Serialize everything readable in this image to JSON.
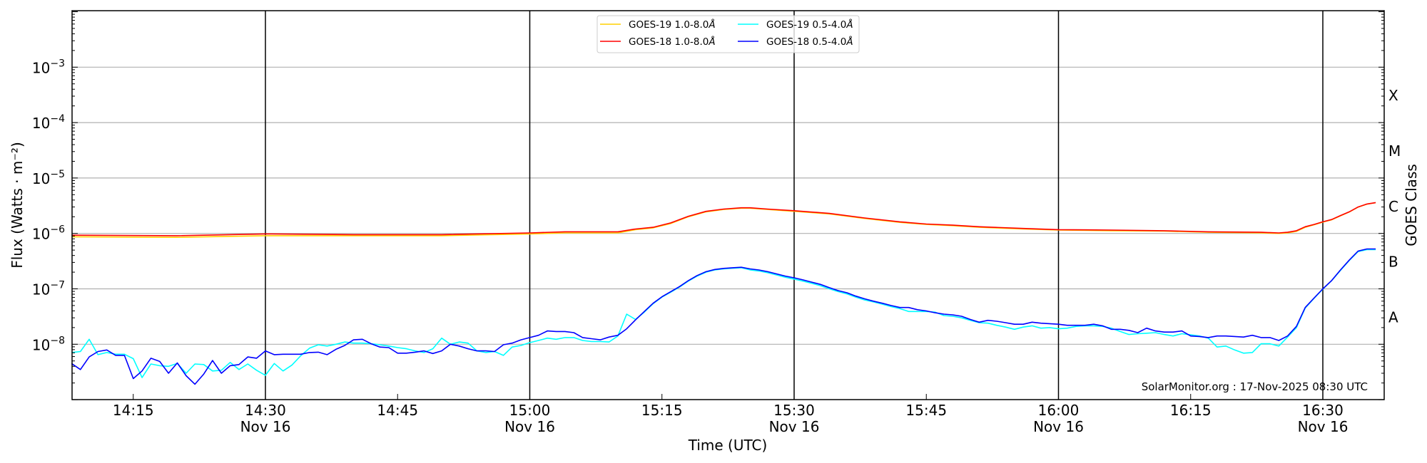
{
  "chart_data": {
    "type": "line",
    "xlabel": "Time (UTC)",
    "ylabel": "Flux (Watts · m⁻²)",
    "ylabel_right": "GOES Class",
    "y_scale": "log",
    "ylim": [
      1e-09,
      0.01
    ],
    "xlim": [
      "14:08",
      "16:37"
    ],
    "grid": "horizontal at each decade; vertical black lines every 30 min",
    "legend_placement": "top-center",
    "watermark": "SolarMonitor.org : 17-Nov-2025 08:30 UTC",
    "x_ticks": [
      {
        "t": "14:15",
        "label": "14:15",
        "date": ""
      },
      {
        "t": "14:30",
        "label": "14:30",
        "date": "Nov 16"
      },
      {
        "t": "14:45",
        "label": "14:45",
        "date": ""
      },
      {
        "t": "15:00",
        "label": "15:00",
        "date": "Nov 16"
      },
      {
        "t": "15:15",
        "label": "15:15",
        "date": ""
      },
      {
        "t": "15:30",
        "label": "15:30",
        "date": "Nov 16"
      },
      {
        "t": "15:45",
        "label": "15:45",
        "date": ""
      },
      {
        "t": "16:00",
        "label": "16:00",
        "date": "Nov 16"
      },
      {
        "t": "16:15",
        "label": "16:15",
        "date": ""
      },
      {
        "t": "16:30",
        "label": "16:30",
        "date": "Nov 16"
      }
    ],
    "y_ticks": [
      {
        "value": 1e-08,
        "base": "10",
        "exp": "−8"
      },
      {
        "value": 1e-07,
        "base": "10",
        "exp": "−7"
      },
      {
        "value": 1e-06,
        "base": "10",
        "exp": "−6"
      },
      {
        "value": 1e-05,
        "base": "10",
        "exp": "−5"
      },
      {
        "value": 0.0001,
        "base": "10",
        "exp": "−4"
      },
      {
        "value": 0.001,
        "base": "10",
        "exp": "−3"
      }
    ],
    "goes_classes": [
      {
        "label": "A",
        "value": 3.16e-08
      },
      {
        "label": "B",
        "value": 3.16e-07
      },
      {
        "label": "C",
        "value": 3.16e-06
      },
      {
        "label": "M",
        "value": 3.16e-05
      },
      {
        "label": "X",
        "value": 0.000316
      }
    ],
    "series": [
      {
        "name": "GOES-19 1.0-8.0Å",
        "legend_main": "GOES-19 1.0-8.0",
        "legend_unit": "Å",
        "color": "#ffd000",
        "x": [
          "14:08",
          "14:20",
          "14:30",
          "14:40",
          "14:50",
          "15:00",
          "15:04",
          "15:10",
          "15:12",
          "15:14",
          "15:16",
          "15:18",
          "15:20",
          "15:22",
          "15:24",
          "15:25",
          "15:27",
          "15:30",
          "15:34",
          "15:38",
          "15:42",
          "15:45",
          "15:48",
          "15:51",
          "15:56",
          "16:00",
          "16:06",
          "16:12",
          "16:17",
          "16:23",
          "16:25",
          "16:26",
          "16:27",
          "16:28",
          "16:29",
          "16:30",
          "16:31",
          "16:32",
          "16:33",
          "16:34",
          "16:35",
          "16:36"
        ],
        "values": [
          8.7e-07,
          8.5e-07,
          9.1e-07,
          9.1e-07,
          9.1e-07,
          9.8e-07,
          1.02e-06,
          1.02e-06,
          1.17e-06,
          1.26e-06,
          1.51e-06,
          2e-06,
          2.45e-06,
          2.7e-06,
          2.85e-06,
          2.85e-06,
          2.7e-06,
          2.5e-06,
          2.25e-06,
          1.86e-06,
          1.58e-06,
          1.45e-06,
          1.38e-06,
          1.29e-06,
          1.2e-06,
          1.15e-06,
          1.12e-06,
          1.1e-06,
          1.05e-06,
          1.02e-06,
          1e-06,
          1.02e-06,
          1.09e-06,
          1.29e-06,
          1.43e-06,
          1.6e-06,
          1.76e-06,
          2.08e-06,
          2.43e-06,
          2.98e-06,
          3.38e-06,
          3.58e-06
        ]
      },
      {
        "name": "GOES-18 1.0-8.0Å",
        "legend_main": "GOES-18 1.0-8.0",
        "legend_unit": "Å",
        "color": "#ff0000",
        "x": [
          "14:08",
          "14:20",
          "14:30",
          "14:40",
          "14:50",
          "15:00",
          "15:04",
          "15:10",
          "15:12",
          "15:14",
          "15:16",
          "15:18",
          "15:20",
          "15:22",
          "15:24",
          "15:25",
          "15:27",
          "15:30",
          "15:34",
          "15:38",
          "15:42",
          "15:45",
          "15:48",
          "15:51",
          "15:56",
          "16:00",
          "16:06",
          "16:12",
          "16:17",
          "16:23",
          "16:25",
          "16:26",
          "16:27",
          "16:28",
          "16:29",
          "16:30",
          "16:31",
          "16:32",
          "16:33",
          "16:34",
          "16:35",
          "16:36"
        ],
        "values": [
          9.3e-07,
          9.1e-07,
          9.8e-07,
          9.5e-07,
          9.5e-07,
          1.02e-06,
          1.07e-06,
          1.07e-06,
          1.2e-06,
          1.29e-06,
          1.55e-06,
          2.04e-06,
          2.5e-06,
          2.75e-06,
          2.9e-06,
          2.9e-06,
          2.75e-06,
          2.57e-06,
          2.3e-06,
          1.9e-06,
          1.62e-06,
          1.48e-06,
          1.41e-06,
          1.32e-06,
          1.23e-06,
          1.17e-06,
          1.15e-06,
          1.12e-06,
          1.07e-06,
          1.05e-06,
          1.02e-06,
          1.05e-06,
          1.12e-06,
          1.32e-06,
          1.45e-06,
          1.62e-06,
          1.78e-06,
          2.1e-06,
          2.45e-06,
          3e-06,
          3.4e-06,
          3.6e-06
        ]
      },
      {
        "name": "GOES-19 0.5-4.0Å",
        "legend_main": "GOES-19 0.5-4.0",
        "legend_unit": "Å",
        "color": "#00ffff",
        "x_ref": "shared_x",
        "values": [
          7.1e-09,
          7.4e-09,
          1.23e-08,
          6.5e-09,
          7.1e-09,
          6.6e-09,
          6.6e-09,
          5.5e-09,
          2.5e-09,
          4.4e-09,
          4.1e-09,
          4e-09,
          4.5e-09,
          3e-09,
          4.4e-09,
          4.3e-09,
          3.3e-09,
          3.4e-09,
          4.7e-09,
          3.5e-09,
          4.4e-09,
          3.4e-09,
          2.75e-09,
          4.5e-09,
          3.3e-09,
          4.2e-09,
          6.2e-09,
          8.5e-09,
          9.8e-09,
          9.3e-09,
          1e-08,
          1.1e-08,
          1.05e-08,
          1.05e-08,
          1.02e-08,
          9.8e-09,
          9.3e-09,
          8.7e-09,
          8.3e-09,
          7.6e-09,
          7.1e-09,
          8.3e-09,
          1.29e-08,
          1e-08,
          1.1e-08,
          1.05e-08,
          7.6e-09,
          7.1e-09,
          7.4e-09,
          6.3e-09,
          8.9e-09,
          9.5e-09,
          1.07e-08,
          1.17e-08,
          1.29e-08,
          1.23e-08,
          1.32e-08,
          1.32e-08,
          1.17e-08,
          1.12e-08,
          1.12e-08,
          1.1e-08,
          1.41e-08,
          3.5e-08,
          2.8e-08,
          3.8e-08,
          5.4e-08,
          7.1e-08,
          8.7e-08,
          1.08e-07,
          1.38e-07,
          1.7e-07,
          2e-07,
          2.2e-07,
          2.3e-07,
          2.35e-07,
          2.4e-07,
          2.2e-07,
          2.1e-07,
          1.95e-07,
          1.78e-07,
          1.62e-07,
          1.5e-07,
          1.38e-07,
          1.26e-07,
          1.14e-07,
          1e-07,
          8.9e-08,
          8.1e-08,
          7.1e-08,
          6.3e-08,
          5.8e-08,
          5.3e-08,
          4.8e-08,
          4.4e-08,
          3.9e-08,
          3.9e-08,
          3.9e-08,
          3.8e-08,
          3.3e-08,
          3.2e-08,
          3e-08,
          2.7e-08,
          2.45e-08,
          2.4e-08,
          2.2e-08,
          2.04e-08,
          1.86e-08,
          2.04e-08,
          2.15e-08,
          1.95e-08,
          2e-08,
          1.9e-08,
          1.95e-08,
          2.1e-08,
          2.15e-08,
          2.15e-08,
          2.1e-08,
          1.95e-08,
          1.7e-08,
          1.5e-08,
          1.55e-08,
          1.58e-08,
          1.62e-08,
          1.5e-08,
          1.41e-08,
          1.55e-08,
          1.48e-08,
          1.41e-08,
          1.29e-08,
          8.9e-09,
          9.3e-09,
          7.9e-09,
          6.9e-09,
          7.1e-09,
          1.02e-08,
          1.02e-08,
          9.3e-09,
          1.35e-08,
          2e-08,
          4.5e-08,
          6.7e-08,
          9.9e-08,
          1.4e-07,
          2.15e-07,
          3.25e-07,
          4.7e-07,
          5.1e-07,
          5.1e-07
        ]
      },
      {
        "name": "GOES-18 0.5-4.0Å",
        "legend_main": "GOES-18 0.5-4.0",
        "legend_unit": "Å",
        "color": "#0000ff",
        "x_ref": "shared_x",
        "values": [
          4.5e-09,
          3.5e-09,
          5.9e-09,
          7.4e-09,
          7.9e-09,
          6.3e-09,
          6.3e-09,
          2.4e-09,
          3.3e-09,
          5.6e-09,
          4.9e-09,
          3e-09,
          4.6e-09,
          2.7e-09,
          1.9e-09,
          2.9e-09,
          5.1e-09,
          3e-09,
          4.1e-09,
          4.3e-09,
          5.9e-09,
          5.6e-09,
          7.6e-09,
          6.5e-09,
          6.6e-09,
          6.6e-09,
          6.6e-09,
          7.1e-09,
          7.2e-09,
          6.5e-09,
          8.1e-09,
          9.5e-09,
          1.2e-08,
          1.23e-08,
          1.02e-08,
          8.9e-09,
          8.7e-09,
          6.9e-09,
          6.9e-09,
          7.2e-09,
          7.6e-09,
          6.8e-09,
          7.6e-09,
          1e-08,
          9.3e-09,
          8.3e-09,
          7.6e-09,
          7.6e-09,
          7.4e-09,
          9.8e-09,
          1.05e-08,
          1.2e-08,
          1.32e-08,
          1.45e-08,
          1.74e-08,
          1.7e-08,
          1.7e-08,
          1.62e-08,
          1.32e-08,
          1.26e-08,
          1.2e-08,
          1.35e-08,
          1.45e-08,
          1.9e-08,
          2.75e-08,
          3.9e-08,
          5.5e-08,
          7.2e-08,
          8.9e-08,
          1.1e-07,
          1.41e-07,
          1.74e-07,
          2.04e-07,
          2.24e-07,
          2.34e-07,
          2.4e-07,
          2.45e-07,
          2.29e-07,
          2.19e-07,
          2.04e-07,
          1.86e-07,
          1.7e-07,
          1.58e-07,
          1.45e-07,
          1.32e-07,
          1.2e-07,
          1.05e-07,
          9.3e-08,
          8.5e-08,
          7.4e-08,
          6.6e-08,
          6e-08,
          5.5e-08,
          5e-08,
          4.6e-08,
          4.6e-08,
          4.2e-08,
          4e-08,
          3.7e-08,
          3.5e-08,
          3.4e-08,
          3.2e-08,
          2.8e-08,
          2.5e-08,
          2.7e-08,
          2.6e-08,
          2.45e-08,
          2.3e-08,
          2.3e-08,
          2.5e-08,
          2.4e-08,
          2.35e-08,
          2.3e-08,
          2.2e-08,
          2.2e-08,
          2.2e-08,
          2.3e-08,
          2.15e-08,
          1.86e-08,
          1.86e-08,
          1.78e-08,
          1.62e-08,
          1.95e-08,
          1.74e-08,
          1.66e-08,
          1.66e-08,
          1.74e-08,
          1.41e-08,
          1.38e-08,
          1.32e-08,
          1.41e-08,
          1.41e-08,
          1.38e-08,
          1.35e-08,
          1.45e-08,
          1.32e-08,
          1.32e-08,
          1.17e-08,
          1.41e-08,
          2.1e-08,
          4.6e-08,
          6.8e-08,
          1e-07,
          1.41e-07,
          2.19e-07,
          3.3e-07,
          4.8e-07,
          5.25e-07,
          5.25e-07
        ]
      }
    ],
    "shared_x": [
      "14:08",
      "14:09",
      "14:10",
      "14:11",
      "14:12",
      "14:13",
      "14:14",
      "14:15",
      "14:16",
      "14:17",
      "14:18",
      "14:19",
      "14:20",
      "14:21",
      "14:22",
      "14:23",
      "14:24",
      "14:25",
      "14:26",
      "14:27",
      "14:28",
      "14:29",
      "14:30",
      "14:31",
      "14:32",
      "14:33",
      "14:34",
      "14:35",
      "14:36",
      "14:37",
      "14:38",
      "14:39",
      "14:40",
      "14:41",
      "14:42",
      "14:43",
      "14:44",
      "14:45",
      "14:46",
      "14:47",
      "14:48",
      "14:49",
      "14:50",
      "14:51",
      "14:52",
      "14:53",
      "14:54",
      "14:55",
      "14:56",
      "14:57",
      "14:58",
      "14:59",
      "15:00",
      "15:01",
      "15:02",
      "15:03",
      "15:04",
      "15:05",
      "15:06",
      "15:07",
      "15:08",
      "15:09",
      "15:10",
      "15:11",
      "15:12",
      "15:13",
      "15:14",
      "15:15",
      "15:16",
      "15:17",
      "15:18",
      "15:19",
      "15:20",
      "15:21",
      "15:22",
      "15:23",
      "15:24",
      "15:25",
      "15:26",
      "15:27",
      "15:28",
      "15:29",
      "15:30",
      "15:31",
      "15:32",
      "15:33",
      "15:34",
      "15:35",
      "15:36",
      "15:37",
      "15:38",
      "15:39",
      "15:40",
      "15:41",
      "15:42",
      "15:43",
      "15:44",
      "15:45",
      "15:46",
      "15:47",
      "15:48",
      "15:49",
      "15:50",
      "15:51",
      "15:52",
      "15:53",
      "15:54",
      "15:55",
      "15:56",
      "15:57",
      "15:58",
      "15:59",
      "16:00",
      "16:01",
      "16:02",
      "16:03",
      "16:04",
      "16:05",
      "16:06",
      "16:07",
      "16:08",
      "16:09",
      "16:10",
      "16:11",
      "16:12",
      "16:13",
      "16:14",
      "16:15",
      "16:16",
      "16:17",
      "16:18",
      "16:19",
      "16:20",
      "16:21",
      "16:22",
      "16:23",
      "16:24",
      "16:25",
      "16:26",
      "16:27",
      "16:28",
      "16:29",
      "16:30",
      "16:31",
      "16:32",
      "16:33",
      "16:34",
      "16:35",
      "16:36"
    ],
    "vertical_lines": [
      "14:30",
      "15:00",
      "15:30",
      "16:00",
      "16:30"
    ]
  }
}
